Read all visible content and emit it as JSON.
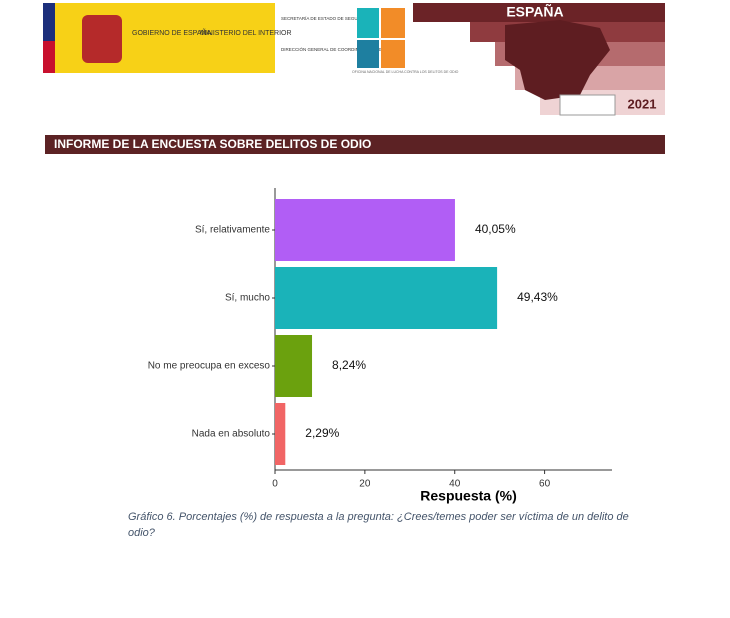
{
  "header": {
    "gov": "GOBIERNO DE ESPAÑA",
    "ministry": "MINISTERIO DEL INTERIOR",
    "secretariat": "SECRETARÍA DE ESTADO DE SEGURIDAD",
    "directorate": "DIRECCIÓN GENERAL DE COORDINACIÓN Y ESTUDIOS",
    "office": "OFICINA NACIONAL DE LUCHA CONTRA LOS DELITOS DE ODIO",
    "region": "ESPAÑA",
    "year": "2021"
  },
  "section_title": "INFORME DE LA ENCUESTA SOBRE DELITOS DE ODIO",
  "caption": "Gráfico 6. Porcentajes (%) de respuesta a la pregunta: ¿Crees/temes poder ser víctima de un delito de odio?",
  "chart_data": {
    "type": "bar",
    "orientation": "horizontal",
    "x_label": "Respuesta (%)",
    "categories": [
      "Sí, relativamente",
      "Sí, mucho",
      "No me preocupa en exceso",
      "Nada en absoluto"
    ],
    "values": [
      40.05,
      49.43,
      8.24,
      2.29
    ],
    "value_labels": [
      "40,05%",
      "49,43%",
      "8,24%",
      "2,29%"
    ],
    "colors": [
      "#b15ef5",
      "#1ab3b9",
      "#6ba10e",
      "#f16565"
    ],
    "xlim": [
      0,
      75
    ],
    "xticks": [
      0,
      20,
      40,
      60
    ],
    "grid": false
  }
}
